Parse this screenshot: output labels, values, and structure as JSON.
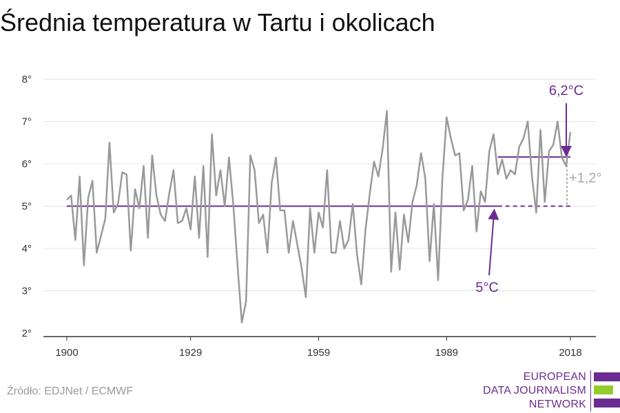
{
  "title": "Średnia temperatura w Tartu i okolicach",
  "source": "Źródło: EDJNet / ECMWF",
  "logo": {
    "lines": [
      "EUROPEAN",
      "DATA JOURNALISM",
      "NETWORK"
    ],
    "colors": {
      "purple": "#6b2c91",
      "green": "#93cc2b"
    }
  },
  "chart_data": {
    "type": "line",
    "xlim": [
      1900,
      2018
    ],
    "ylim": [
      2,
      8
    ],
    "x_ticks": [
      1900,
      1929,
      1959,
      1989,
      2018
    ],
    "y_ticks": [
      2,
      3,
      4,
      5,
      6,
      7,
      8
    ],
    "y_tick_suffix": "°",
    "grid": "horizontal",
    "colors": {
      "series": "#999999",
      "reference": "#6b2c91",
      "diff": "#aaaaaa"
    },
    "series": [
      {
        "x": [
          1900,
          1901,
          1902,
          1903,
          1904,
          1905,
          1906,
          1907,
          1908,
          1909,
          1910,
          1911,
          1912,
          1913,
          1914,
          1915,
          1916,
          1917,
          1918,
          1919,
          1920,
          1921,
          1922,
          1923,
          1924,
          1925,
          1926,
          1927,
          1928,
          1929,
          1930,
          1931,
          1932,
          1933,
          1934,
          1935,
          1936,
          1937,
          1938,
          1939,
          1940,
          1941,
          1942,
          1943,
          1944,
          1945,
          1946,
          1947,
          1948,
          1949,
          1950,
          1951,
          1952,
          1953,
          1954,
          1955,
          1956,
          1957,
          1958,
          1959,
          1960,
          1961,
          1962,
          1963,
          1964,
          1965,
          1966,
          1967,
          1968,
          1969,
          1970,
          1971,
          1972,
          1973,
          1974,
          1975,
          1976,
          1977,
          1978,
          1979,
          1980,
          1981,
          1982,
          1983,
          1984,
          1985,
          1986,
          1987,
          1988,
          1989,
          1990,
          1991,
          1992,
          1993,
          1994,
          1995,
          1996,
          1997,
          1998,
          1999,
          2000,
          2001,
          2002,
          2003,
          2004,
          2005,
          2006,
          2007,
          2008,
          2009,
          2010,
          2011,
          2012,
          2013,
          2014,
          2015,
          2016,
          2017,
          2018
        ],
        "values": [
          5.15,
          5.25,
          4.2,
          5.7,
          3.6,
          5.2,
          5.6,
          3.9,
          4.3,
          4.7,
          6.5,
          4.85,
          5.05,
          5.8,
          5.75,
          3.95,
          5.4,
          4.95,
          5.95,
          4.25,
          6.2,
          5.25,
          4.8,
          4.65,
          5.3,
          5.85,
          4.6,
          4.65,
          4.95,
          4.45,
          5.7,
          4.25,
          5.95,
          3.8,
          6.7,
          5.25,
          5.85,
          5.0,
          6.15,
          5.05,
          3.6,
          2.25,
          2.75,
          6.2,
          5.85,
          4.6,
          4.8,
          3.9,
          5.55,
          6.15,
          4.9,
          4.9,
          3.9,
          4.65,
          4.1,
          3.55,
          2.85,
          4.95,
          3.9,
          4.85,
          4.5,
          5.85,
          3.9,
          3.9,
          4.65,
          4.0,
          4.2,
          5.05,
          3.85,
          3.15,
          4.45,
          5.3,
          6.05,
          5.7,
          6.35,
          7.25,
          3.45,
          4.85,
          3.5,
          4.8,
          4.15,
          5.1,
          5.5,
          6.25,
          5.65,
          3.7,
          5.05,
          3.25,
          5.65,
          7.1,
          6.6,
          6.2,
          6.25,
          4.9,
          5.15,
          5.95,
          4.4,
          5.35,
          5.1,
          6.3,
          6.7,
          5.75,
          6.1,
          5.65,
          5.85,
          5.75,
          6.4,
          6.6,
          7.0,
          5.7,
          4.85,
          6.8,
          5.1,
          6.3,
          6.45,
          7.0,
          6.15,
          5.95,
          6.75
        ]
      }
    ],
    "reference_lines": [
      {
        "label": "5°C",
        "value": 5.0,
        "from": 1900,
        "to": 2018,
        "solid_to": 2001
      },
      {
        "label": "6,2°C",
        "value": 6.16,
        "from": 2001,
        "to": 2018
      }
    ],
    "difference_label": "+1,2°"
  }
}
